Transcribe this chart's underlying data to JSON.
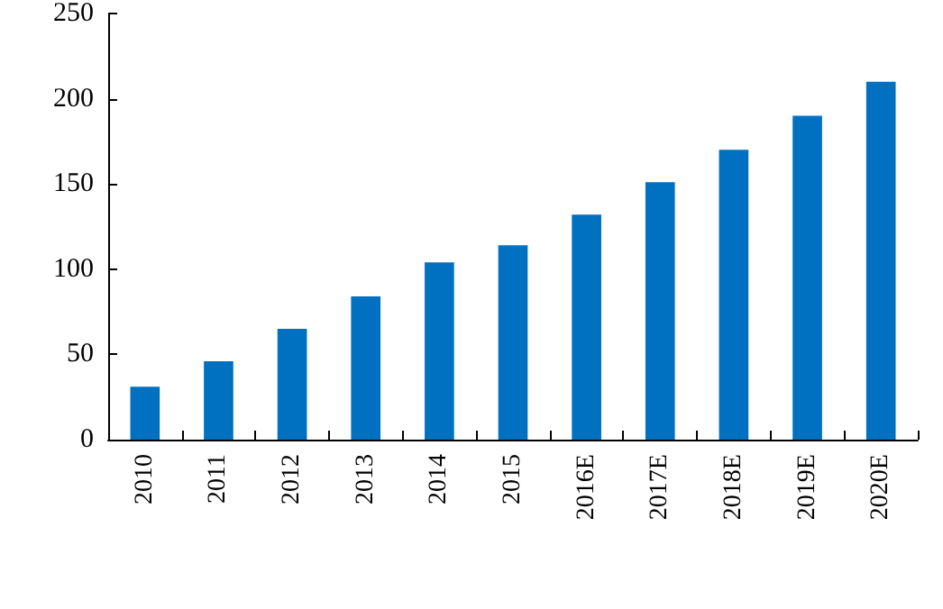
{
  "chart_data": {
    "type": "bar",
    "categories": [
      "2010",
      "2011",
      "2012",
      "2013",
      "2014",
      "2015",
      "2016E",
      "2017E",
      "2018E",
      "2019E",
      "2020E"
    ],
    "values": [
      31,
      46,
      65,
      84,
      104,
      114,
      132,
      151,
      170,
      190,
      210
    ],
    "color": "#0070c0",
    "ylim": [
      0,
      250
    ],
    "yticks": [
      0,
      50,
      100,
      150,
      200,
      250
    ],
    "grid": false
  }
}
